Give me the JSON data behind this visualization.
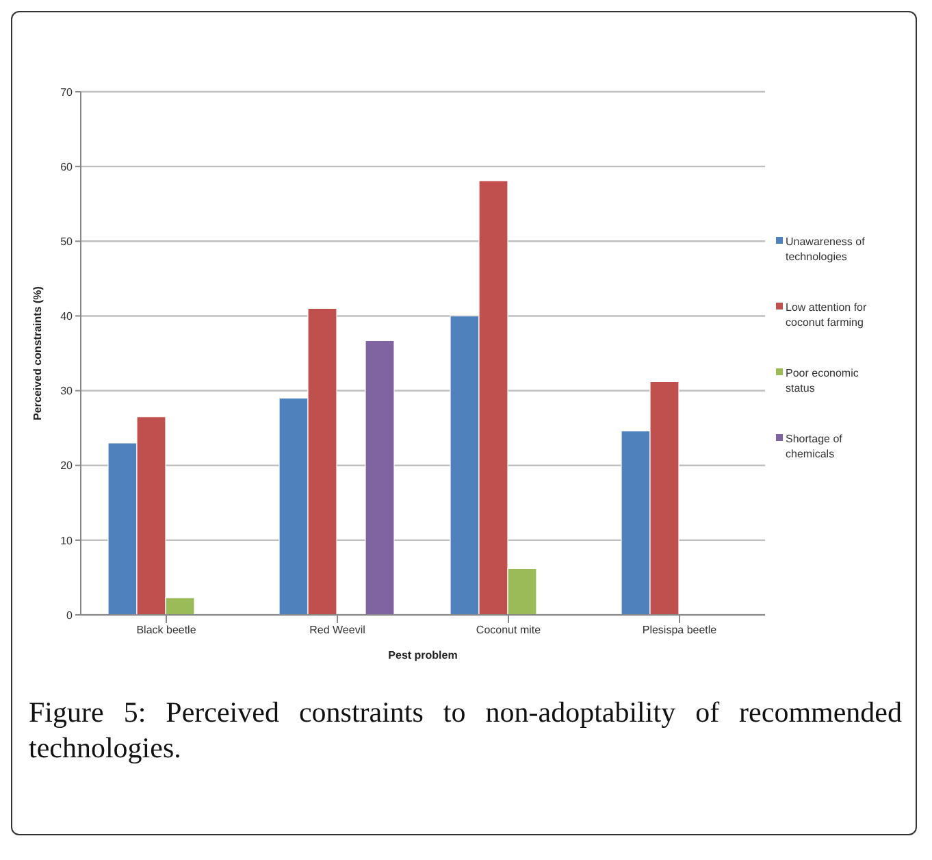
{
  "chart_data": {
    "type": "bar",
    "xlabel": "Pest problem",
    "ylabel": "Perceived constraints (%)",
    "categories": [
      "Black beetle",
      "Red Weevil",
      "Coconut mite",
      "Plesispa beetle"
    ],
    "series": [
      {
        "name": "Unawareness of technologies",
        "color": "#4f81bd",
        "values": [
          23,
          29,
          40,
          24.6
        ]
      },
      {
        "name": "Low attention for coconut farming",
        "color": "#c0504d",
        "values": [
          26.5,
          41,
          58.1,
          31.2
        ]
      },
      {
        "name": "Poor economic status",
        "color": "#9bbb59",
        "values": [
          2.3,
          null,
          6.2,
          null
        ]
      },
      {
        "name": "Shortage of chemicals",
        "color": "#8064a2",
        "values": [
          null,
          36.7,
          null,
          null
        ]
      }
    ],
    "ylim": [
      0,
      70
    ],
    "yticks": [
      0,
      10,
      20,
      30,
      40,
      50,
      60,
      70
    ],
    "grid": "y",
    "legend": "right",
    "annotations": [
      "Figure 5: Perceived constraints to non-adoptability of recommended technologies."
    ]
  }
}
